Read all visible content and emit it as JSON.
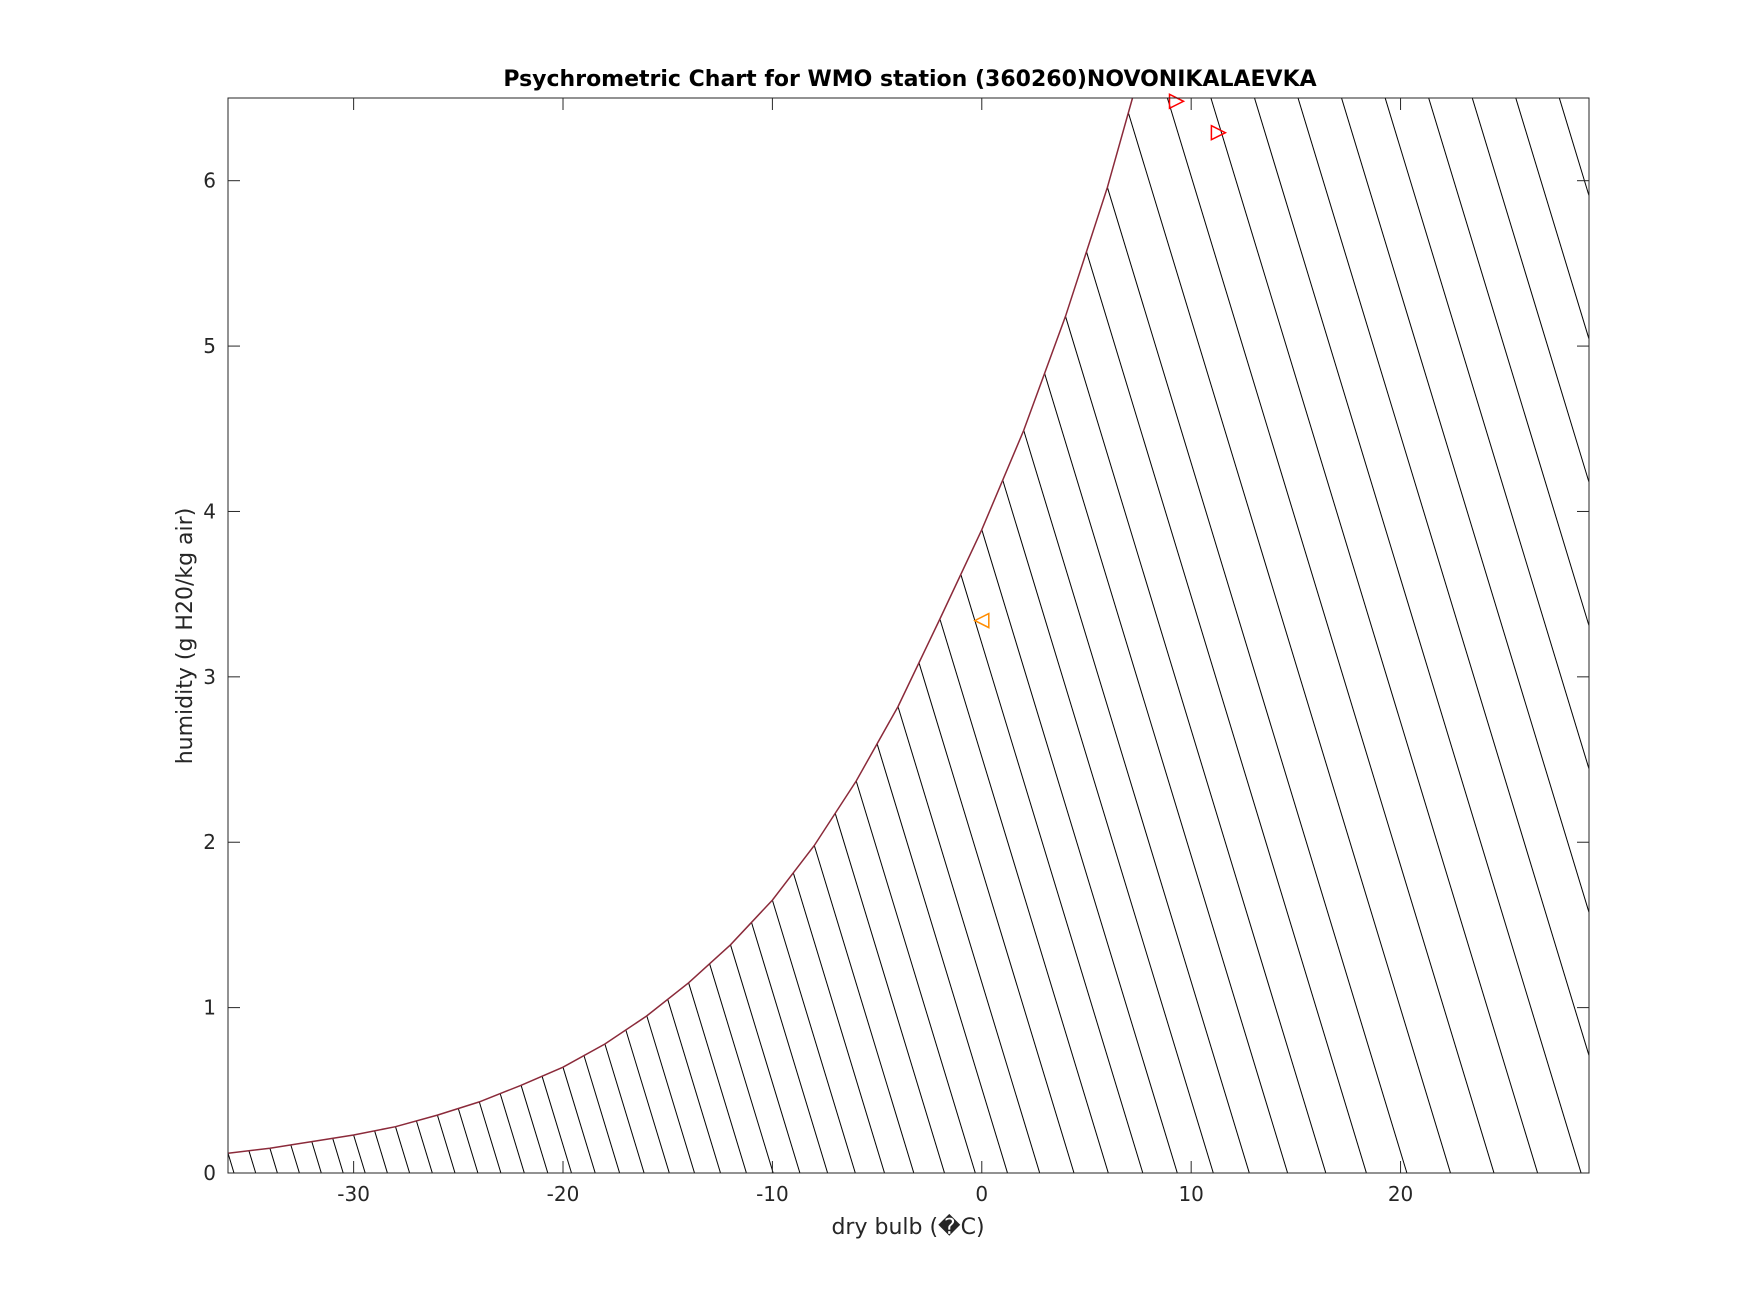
{
  "chart_data": {
    "type": "line",
    "title": "Psychrometric Chart for WMO station (360260)NOVONIKALAEVKA",
    "xlabel": "dry bulb (�C)",
    "ylabel": "humidity (g H20/kg air)",
    "xlim": [
      -36,
      29
    ],
    "ylim": [
      0,
      6.5
    ],
    "xticks": [
      -30,
      -20,
      -10,
      0,
      10,
      20
    ],
    "yticks": [
      0,
      1,
      2,
      3,
      4,
      5,
      6
    ],
    "grid": false,
    "saturation_curve": {
      "color": "#8b2a3a",
      "x": [
        -36,
        -34,
        -32,
        -30,
        -28,
        -26,
        -24,
        -22,
        -20,
        -18,
        -16,
        -14,
        -12,
        -10,
        -8,
        -6,
        -4,
        -2,
        0,
        2,
        4,
        6,
        7.2
      ],
      "y": [
        0.12,
        0.15,
        0.19,
        0.23,
        0.28,
        0.35,
        0.43,
        0.53,
        0.64,
        0.78,
        0.95,
        1.15,
        1.38,
        1.65,
        1.98,
        2.37,
        2.82,
        3.35,
        3.89,
        4.49,
        5.18,
        5.96,
        6.5
      ]
    },
    "wet_bulb_lines": {
      "color": "#000000",
      "spacing": 1,
      "slope_c_per_gkg": 2.4
    },
    "markers": [
      {
        "x": 9.3,
        "y": 6.48,
        "shape": "triangle-right",
        "color": "#ff0000"
      },
      {
        "x": 11.3,
        "y": 6.29,
        "shape": "triangle-right",
        "color": "#ff0000"
      },
      {
        "x": 0.0,
        "y": 3.34,
        "shape": "triangle-left",
        "color": "#ff8c00"
      }
    ]
  }
}
